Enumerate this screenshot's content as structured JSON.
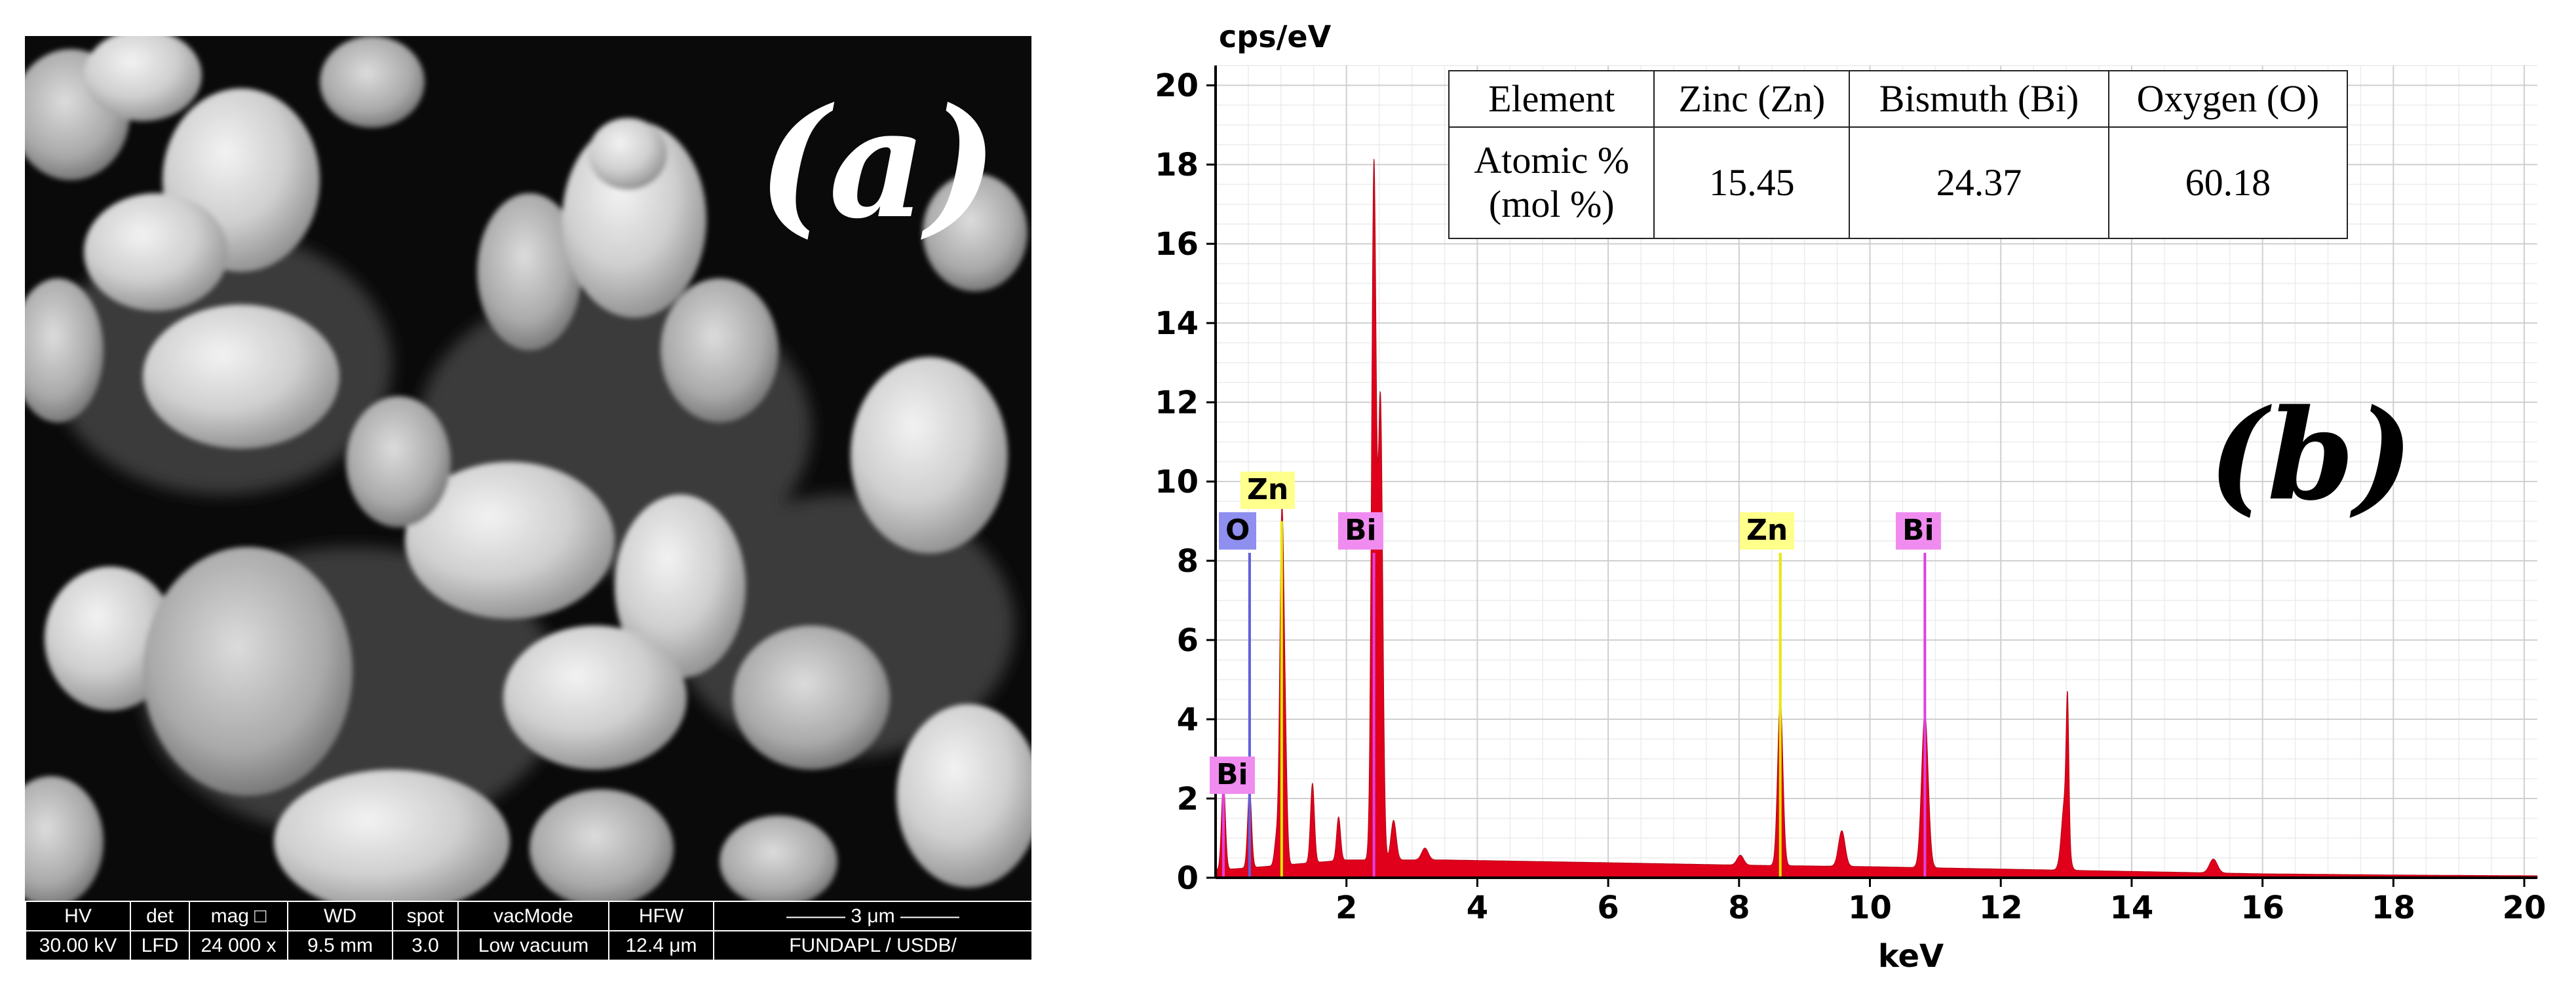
{
  "figure": {
    "panel_a_label": "(a)",
    "panel_b_label": "(b)"
  },
  "sem": {
    "headers": [
      "HV",
      "det",
      "mag □",
      "WD",
      "spot",
      "vacMode",
      "HFW",
      "——— 3 μm ———"
    ],
    "values": [
      "30.00 kV",
      "LFD",
      "24 000 x",
      "9.5 mm",
      "3.0",
      "Low vacuum",
      "12.4 μm",
      "FUNDAPL / USDB/"
    ]
  },
  "composition_table": {
    "header": [
      "Element",
      "Zinc (Zn)",
      "Bismuth (Bi)",
      "Oxygen (O)"
    ],
    "row_label_line1": "Atomic %",
    "row_label_line2": "(mol %)",
    "values": [
      "15.45",
      "24.37",
      "60.18"
    ]
  },
  "peak_labels": {
    "o": "O",
    "zn_low": "Zn",
    "bi_m": "Bi",
    "bi_low": "Bi",
    "zn_k": "Zn",
    "bi_l": "Bi"
  },
  "colors": {
    "spectrum_fill": "#e0001b",
    "o_line": "#6060e0",
    "zn_line": "#e8e800",
    "bi_line": "#e040e0"
  },
  "chart_data": {
    "type": "area",
    "ylabel": "cps/eV",
    "xlabel": "keV",
    "xlim": [
      0,
      20.2
    ],
    "ylim": [
      0,
      20.5
    ],
    "x_ticks": [
      2,
      4,
      6,
      8,
      10,
      12,
      14,
      16,
      18,
      20
    ],
    "y_ticks": [
      0,
      2,
      4,
      6,
      8,
      10,
      12,
      14,
      16,
      18,
      20
    ],
    "grid": true,
    "background": [
      [
        0.05,
        0.2
      ],
      [
        0.5,
        0.25
      ],
      [
        2.0,
        0.45
      ],
      [
        3.5,
        0.45
      ],
      [
        6.0,
        0.38
      ],
      [
        8.0,
        0.32
      ],
      [
        10.0,
        0.28
      ],
      [
        12.0,
        0.22
      ],
      [
        14.0,
        0.16
      ],
      [
        16.0,
        0.1
      ],
      [
        18.0,
        0.07
      ],
      [
        20.2,
        0.05
      ]
    ],
    "peaks": [
      {
        "x": 0.12,
        "y": 2.2,
        "w": 0.03
      },
      {
        "x": 0.52,
        "y": 2.0,
        "w": 0.03
      },
      {
        "x": 0.93,
        "y": 0.7,
        "w": 0.03
      },
      {
        "x": 1.01,
        "y": 8.2,
        "w": 0.03
      },
      {
        "x": 1.06,
        "y": 3.1,
        "w": 0.03
      },
      {
        "x": 1.48,
        "y": 2.0,
        "w": 0.03
      },
      {
        "x": 1.88,
        "y": 1.1,
        "w": 0.03
      },
      {
        "x": 2.42,
        "y": 17.5,
        "w": 0.035
      },
      {
        "x": 2.52,
        "y": 11.5,
        "w": 0.035
      },
      {
        "x": 2.72,
        "y": 1.0,
        "w": 0.04
      },
      {
        "x": 3.2,
        "y": 0.3,
        "w": 0.05
      },
      {
        "x": 8.02,
        "y": 0.25,
        "w": 0.05
      },
      {
        "x": 8.63,
        "y": 4.2,
        "w": 0.04
      },
      {
        "x": 9.57,
        "y": 0.9,
        "w": 0.05
      },
      {
        "x": 10.84,
        "y": 3.9,
        "w": 0.05
      },
      {
        "x": 12.98,
        "y": 1.8,
        "w": 0.05
      },
      {
        "x": 13.02,
        "y": 3.2,
        "w": 0.02
      },
      {
        "x": 15.25,
        "y": 0.35,
        "w": 0.06
      }
    ],
    "element_lines": [
      {
        "element": "O",
        "x": 0.52,
        "y": 8.2,
        "color": "#6060e0"
      },
      {
        "element": "Zn",
        "x": 1.01,
        "y": 9.0,
        "color": "#e8e800"
      },
      {
        "element": "Bi",
        "x": 2.42,
        "y": 8.2,
        "color": "#e040e0"
      },
      {
        "element": "Bi",
        "x": 0.12,
        "y": 2.2,
        "color": "#e040e0"
      },
      {
        "element": "Zn",
        "x": 8.63,
        "y": 8.2,
        "color": "#e8e800"
      },
      {
        "element": "Bi",
        "x": 10.84,
        "y": 8.2,
        "color": "#e040e0"
      }
    ]
  }
}
